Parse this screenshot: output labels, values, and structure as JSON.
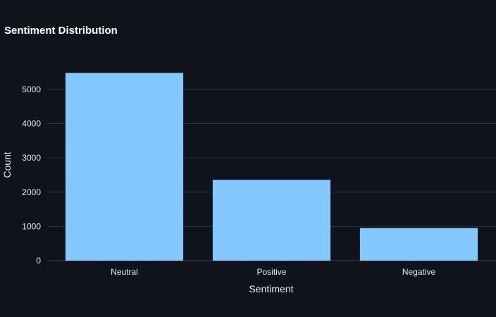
{
  "chart_data": {
    "type": "bar",
    "title": "Sentiment Distribution",
    "xlabel": "Sentiment",
    "ylabel": "Count",
    "categories": [
      "Neutral",
      "Positive",
      "Negative"
    ],
    "values": [
      5480,
      2360,
      950
    ],
    "ylim": [
      0,
      5800
    ],
    "yticks": [
      0,
      1000,
      2000,
      3000,
      4000,
      5000
    ],
    "grid": true,
    "bar_color": "#83c9ff",
    "background_color": "#10131a"
  }
}
